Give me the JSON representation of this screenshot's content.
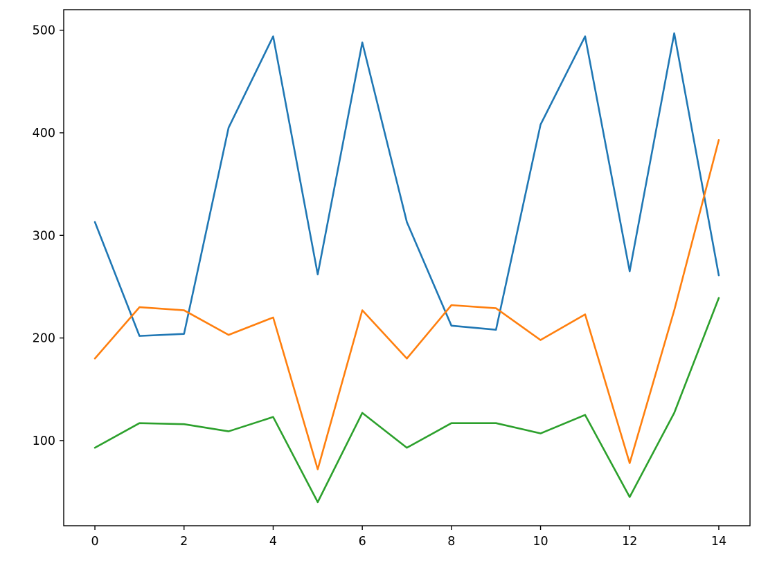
{
  "chart_data": {
    "type": "line",
    "title": "",
    "xlabel": "",
    "ylabel": "",
    "x": [
      0,
      1,
      2,
      3,
      4,
      5,
      6,
      7,
      8,
      9,
      10,
      11,
      12,
      13,
      14
    ],
    "series": [
      {
        "name": "series-blue",
        "color": "#1f77b4",
        "values": [
          313,
          202,
          204,
          405,
          494,
          262,
          488,
          313,
          212,
          208,
          408,
          494,
          265,
          497,
          261
        ]
      },
      {
        "name": "series-orange",
        "color": "#ff7f0e",
        "values": [
          180,
          230,
          227,
          203,
          220,
          72,
          227,
          180,
          232,
          229,
          198,
          223,
          78,
          227,
          393
        ]
      },
      {
        "name": "series-green",
        "color": "#2ca02c",
        "values": [
          93,
          117,
          116,
          109,
          123,
          40,
          127,
          93,
          117,
          117,
          107,
          125,
          45,
          127,
          239
        ]
      }
    ],
    "xticks": [
      0,
      2,
      4,
      6,
      8,
      10,
      12,
      14
    ],
    "yticks": [
      100,
      200,
      300,
      400,
      500
    ],
    "xtick_labels": [
      "0",
      "2",
      "4",
      "6",
      "8",
      "10",
      "12",
      "14"
    ],
    "ytick_labels": [
      "100",
      "200",
      "300",
      "400",
      "500"
    ],
    "xlim": [
      -0.7,
      14.7
    ],
    "ylim": [
      17,
      520
    ],
    "grid": false,
    "legend": null
  },
  "colors": {
    "background": "#ffffff",
    "spine": "#000000",
    "tick_label": "#000000"
  }
}
